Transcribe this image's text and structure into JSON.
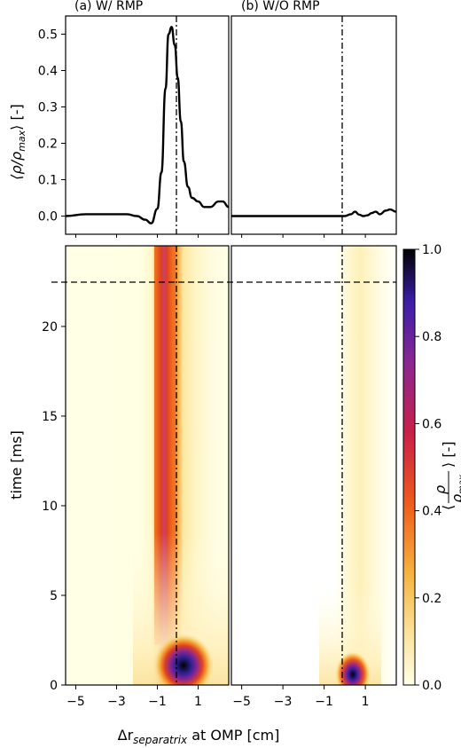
{
  "chart_data": [
    {
      "type": "line",
      "title": "(a) W/ RMP",
      "ylabel": "⟨ρ/ρmax⟩ [-]",
      "xlim": [
        -5.5,
        2.5
      ],
      "ylim": [
        -0.05,
        0.55
      ],
      "yticks": [
        "0.0",
        "0.1",
        "0.2",
        "0.3",
        "0.4",
        "0.5"
      ],
      "separatrix_x": 0.2,
      "series": [
        {
          "x": [
            -5.5,
            -4.5,
            -3.5,
            -2.5,
            -2.0,
            -1.6,
            -1.3,
            -1.0,
            -0.8,
            -0.6,
            -0.45,
            -0.3,
            -0.15,
            0.0,
            0.15,
            0.3,
            0.5,
            0.7,
            1.0,
            1.3,
            1.6,
            2.0,
            2.2,
            2.5
          ],
          "y": [
            0.0,
            0.005,
            0.005,
            0.005,
            0.0,
            -0.01,
            -0.02,
            0.02,
            0.12,
            0.35,
            0.5,
            0.52,
            0.47,
            0.38,
            0.26,
            0.15,
            0.08,
            0.05,
            0.04,
            0.025,
            0.025,
            0.04,
            0.04,
            0.025
          ]
        }
      ]
    },
    {
      "type": "line",
      "title": "(b) W/O RMP",
      "xlim": [
        -5.5,
        2.5
      ],
      "ylim": [
        -0.05,
        0.55
      ],
      "separatrix_x": 0.2,
      "series": [
        {
          "x": [
            -5.5,
            -3.0,
            -1.0,
            0.0,
            0.3,
            0.5,
            0.7,
            0.9,
            1.1,
            1.3,
            1.5,
            1.7,
            2.0,
            2.2,
            2.5
          ],
          "y": [
            0.0,
            0.0,
            0.0,
            0.0,
            0.005,
            0.012,
            0.004,
            0.0,
            0.002,
            0.008,
            0.012,
            0.005,
            0.015,
            0.018,
            0.012
          ]
        }
      ]
    },
    {
      "type": "heatmap",
      "xlabel": "Δr separatrix at OMP [cm]",
      "ylabel": "time [ms]",
      "xlim": [
        -5.5,
        2.5
      ],
      "ylim": [
        0,
        24.5
      ],
      "xticks": [
        "−5",
        "−3",
        "−1",
        "1"
      ],
      "yticks": [
        "0",
        "5",
        "10",
        "15",
        "20"
      ],
      "hline_time": 22.5,
      "separatrix_x": 0.2,
      "panels": [
        "W/ RMP",
        "W/O RMP"
      ],
      "colorbar": {
        "label": "⟨ρ/ρmax⟩ [-]",
        "range": [
          0.0,
          1.0
        ],
        "ticks": [
          "0.0",
          "0.2",
          "0.4",
          "0.6",
          "0.8",
          "1.0"
        ],
        "colormap": [
          "#ffffe6",
          "#fbe29b",
          "#f6b13e",
          "#ee5a1c",
          "#c81f4a",
          "#8a2792",
          "#3b1ea8",
          "#000000"
        ]
      }
    }
  ],
  "labels": {
    "title_a": "(a) W/ RMP",
    "title_b": "(b) W/O RMP",
    "ylabel_top_main": "⟨ρ/ρ",
    "ylabel_top_sub": "max",
    "ylabel_top_end": "⟩ [-]",
    "ylabel_bottom": "time [ms]",
    "xlabel_delta": "Δr",
    "xlabel_sub": "separatrix",
    "xlabel_end": " at OMP [cm]",
    "cbar_label_num": "ρ",
    "cbar_label_den": "ρ",
    "cbar_label_den_sub": "max",
    "cbar_label_end": "⟩ [-]",
    "cbar_label_start": "⟨"
  }
}
